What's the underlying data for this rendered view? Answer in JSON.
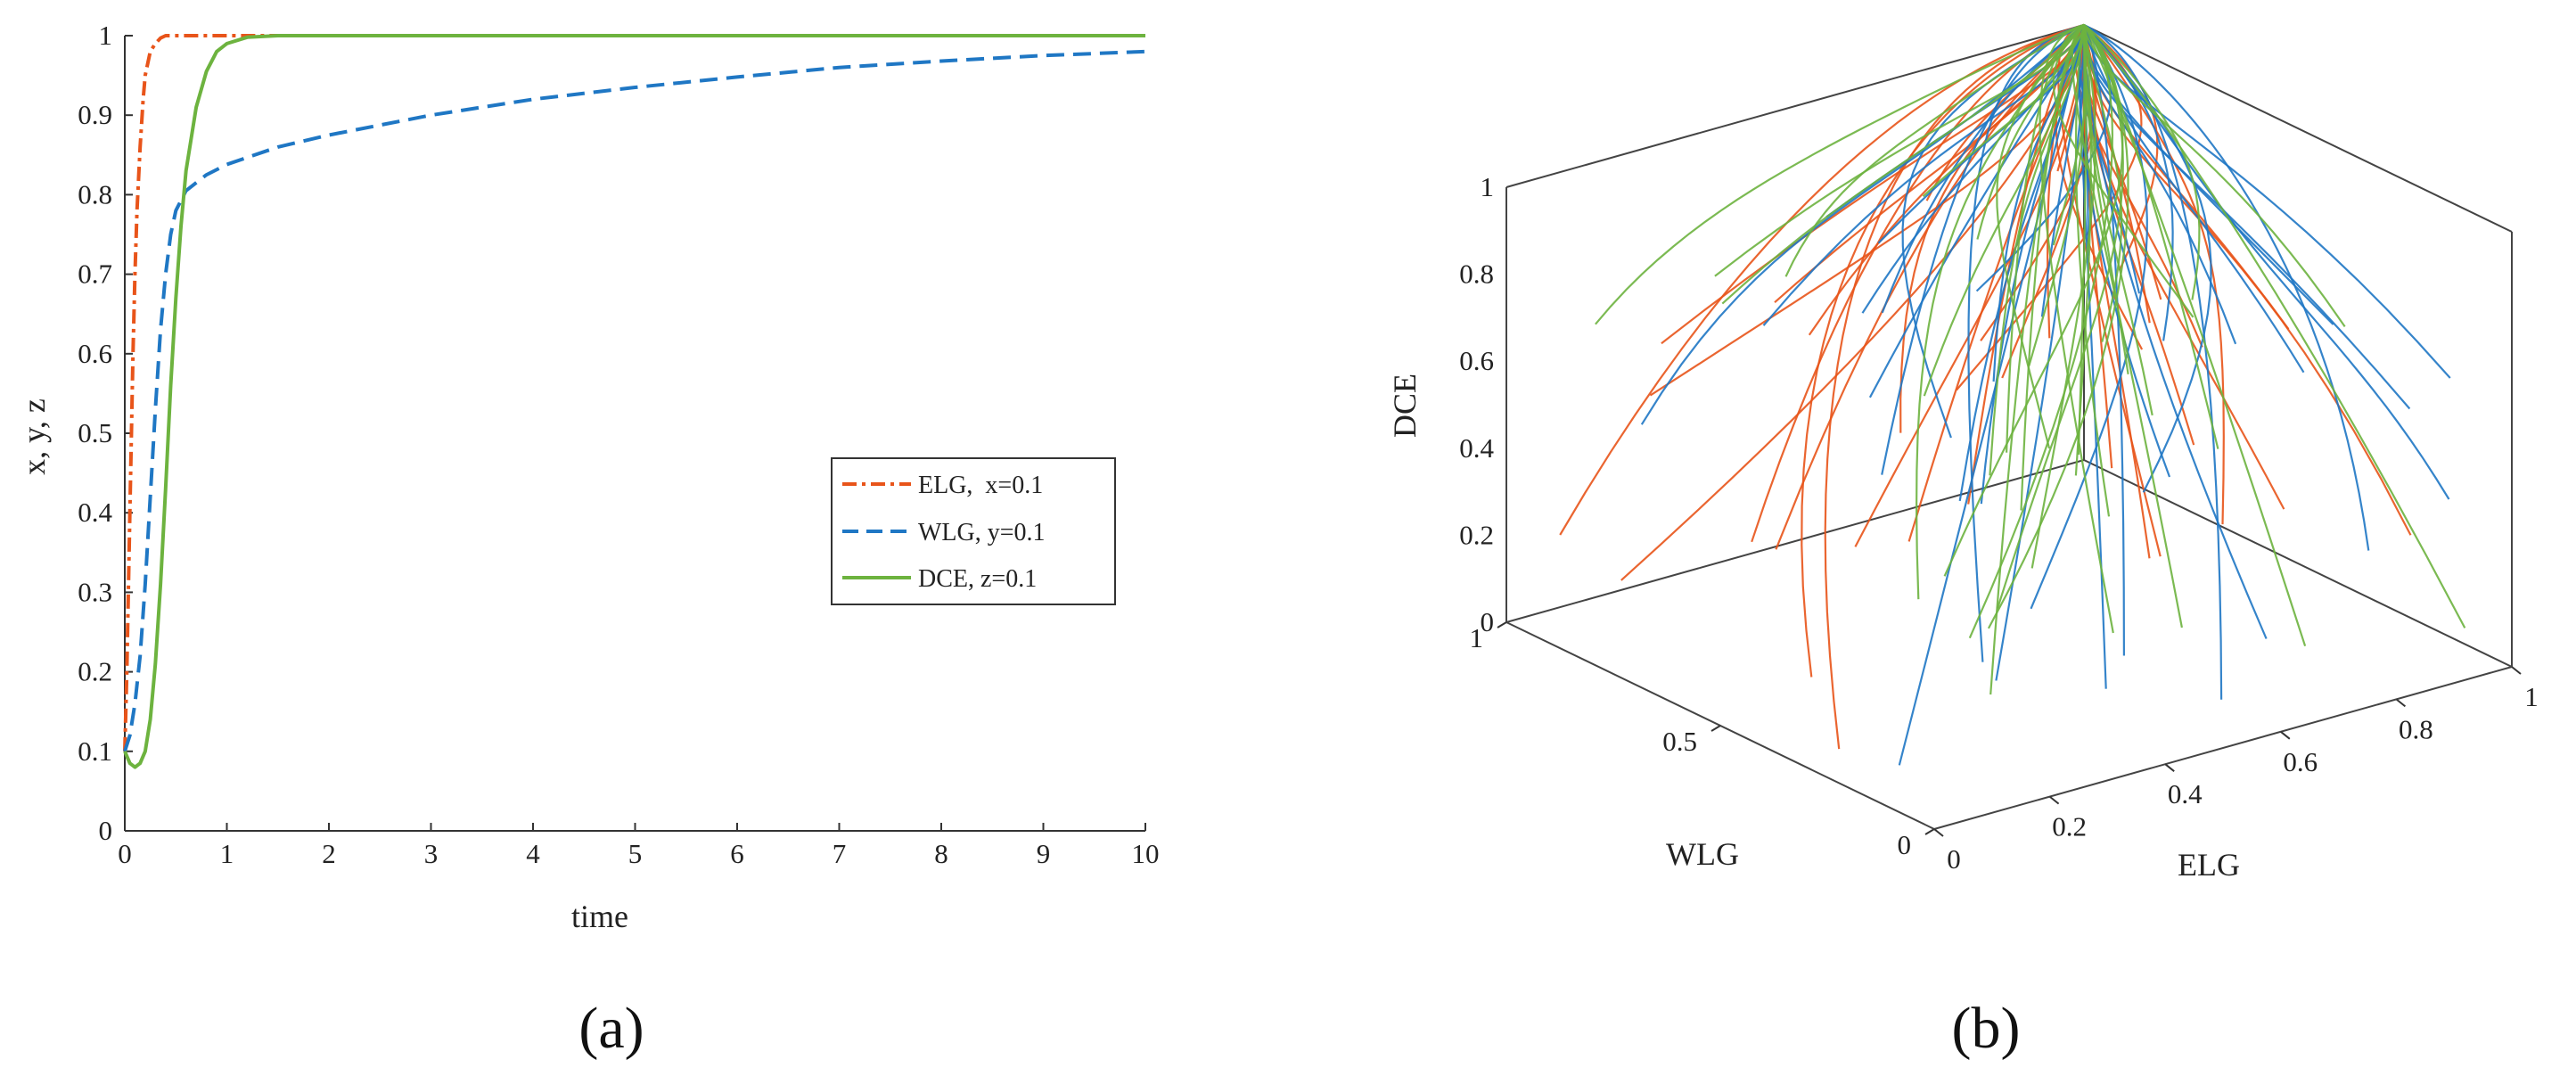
{
  "chart_data": [
    {
      "panel": "(a)",
      "type": "line",
      "title": "",
      "xlabel": "time",
      "ylabel": "x, y, z",
      "xlim": [
        0,
        10
      ],
      "ylim": [
        0,
        1
      ],
      "xticks": [
        "0",
        "1",
        "2",
        "3",
        "4",
        "5",
        "6",
        "7",
        "8",
        "9",
        "10"
      ],
      "yticks": [
        "0",
        "0.1",
        "0.2",
        "0.3",
        "0.4",
        "0.5",
        "0.6",
        "0.7",
        "0.8",
        "0.9",
        "1"
      ],
      "legend_position": "right",
      "series": [
        {
          "name": "ELG,  x=0.1",
          "color": "#e8541a",
          "style": "dash-dot",
          "x": [
            0,
            0.02,
            0.05,
            0.08,
            0.1,
            0.12,
            0.15,
            0.18,
            0.2,
            0.25,
            0.3,
            0.35,
            0.4,
            0.5,
            0.6,
            0.8,
            1,
            2,
            5,
            10
          ],
          "y": [
            0.1,
            0.2,
            0.4,
            0.6,
            0.7,
            0.78,
            0.86,
            0.92,
            0.95,
            0.98,
            0.99,
            0.997,
            1,
            1,
            1,
            1,
            1,
            1,
            1,
            1
          ]
        },
        {
          "name": "WLG, y=0.1",
          "color": "#1f77c4",
          "style": "dashed",
          "x": [
            0,
            0.05,
            0.1,
            0.15,
            0.2,
            0.25,
            0.3,
            0.35,
            0.4,
            0.45,
            0.5,
            0.6,
            0.8,
            1,
            1.5,
            2,
            3,
            4,
            5,
            6,
            7,
            8,
            9,
            10
          ],
          "y": [
            0.1,
            0.12,
            0.16,
            0.22,
            0.31,
            0.42,
            0.53,
            0.63,
            0.7,
            0.75,
            0.78,
            0.805,
            0.825,
            0.838,
            0.86,
            0.875,
            0.9,
            0.92,
            0.935,
            0.948,
            0.96,
            0.968,
            0.975,
            0.98
          ]
        },
        {
          "name": "DCE, z=0.1",
          "color": "#6db33f",
          "style": "solid",
          "x": [
            0,
            0.05,
            0.1,
            0.15,
            0.2,
            0.25,
            0.3,
            0.35,
            0.4,
            0.45,
            0.5,
            0.55,
            0.6,
            0.7,
            0.8,
            0.9,
            1,
            1.2,
            1.5,
            2,
            5,
            10
          ],
          "y": [
            0.1,
            0.085,
            0.08,
            0.085,
            0.1,
            0.14,
            0.21,
            0.31,
            0.43,
            0.56,
            0.67,
            0.76,
            0.83,
            0.91,
            0.955,
            0.98,
            0.99,
            0.998,
            1,
            1,
            1,
            1
          ]
        }
      ]
    },
    {
      "panel": "(b)",
      "type": "line3d",
      "title": "",
      "xlabel": "ELG",
      "ylabel": "WLG",
      "zlabel": "DCE",
      "xlim": [
        0,
        1
      ],
      "ylim": [
        0,
        1
      ],
      "zlim": [
        0,
        1
      ],
      "xticks": [
        "0",
        "0.2",
        "0.4",
        "0.6",
        "0.8",
        "1"
      ],
      "yticks": [
        "0",
        "0.5",
        "1"
      ],
      "zticks": [
        "0",
        "0.2",
        "0.4",
        "0.6",
        "0.8",
        "1"
      ],
      "series_colors": [
        "#e8541a",
        "#1f77c4",
        "#6db33f"
      ],
      "trajectories_per_color": 34,
      "converges_to": [
        1,
        1,
        1
      ]
    }
  ]
}
